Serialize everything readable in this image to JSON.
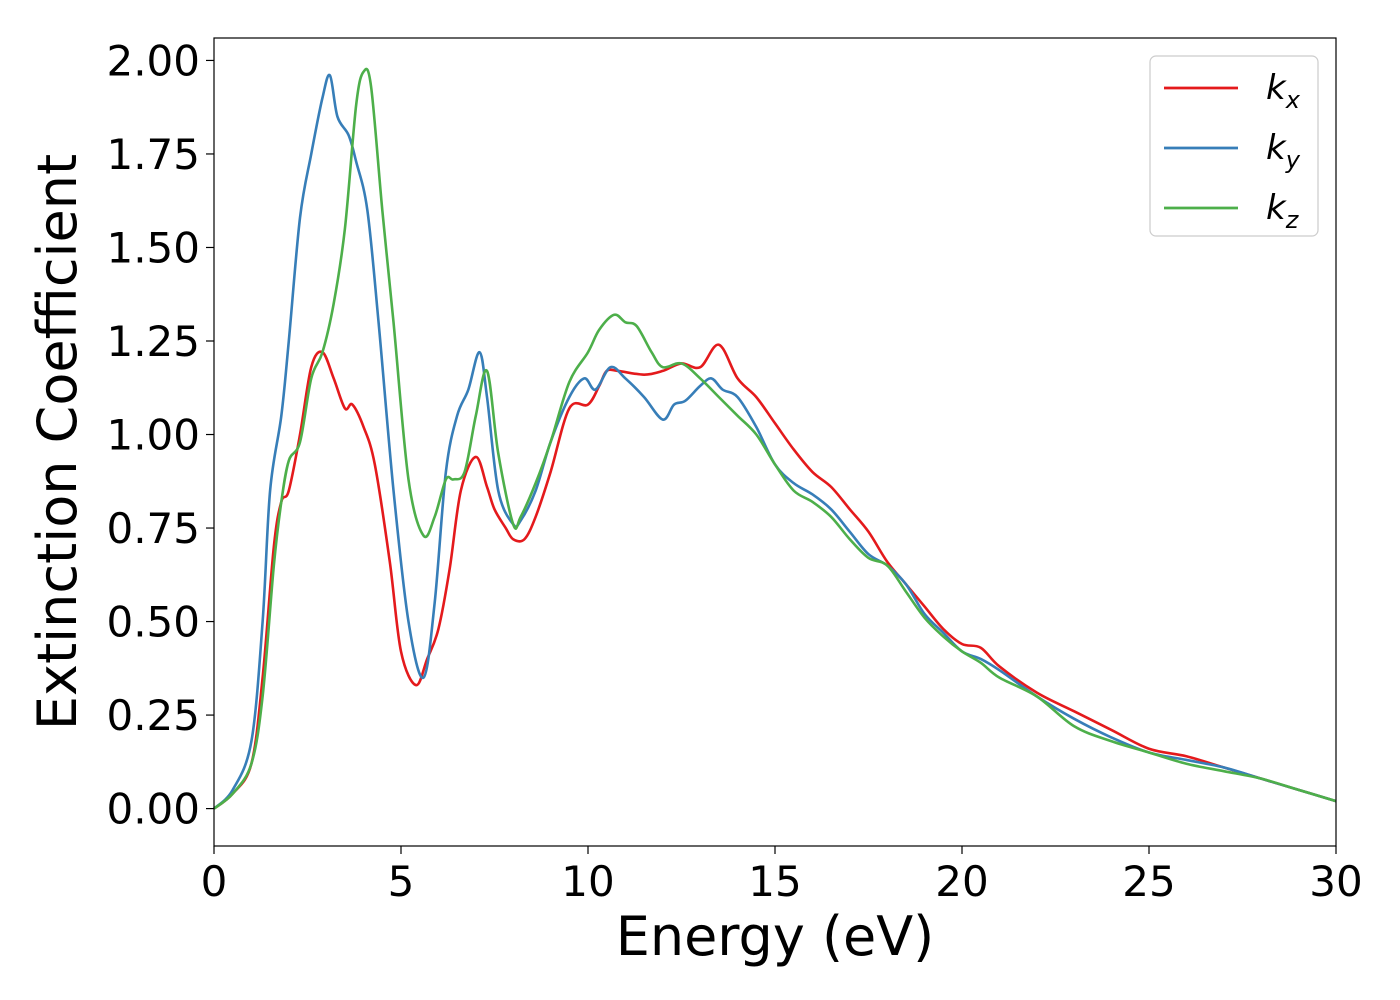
{
  "chart_data": {
    "type": "line",
    "xlabel": "Energy (eV)",
    "ylabel": "Extinction Coefficient",
    "xlim": [
      0,
      30
    ],
    "ylim": [
      -0.1,
      2.06
    ],
    "xticks": [
      "0",
      "5",
      "10",
      "15",
      "20",
      "25",
      "30"
    ],
    "yticks": [
      "0.00",
      "0.25",
      "0.50",
      "0.75",
      "1.00",
      "1.25",
      "1.50",
      "1.75",
      "2.00"
    ],
    "grid": false,
    "legend_position": "top-right",
    "series": [
      {
        "name": "k",
        "subscript": "x",
        "color": "#e41a1c",
        "x": [
          0,
          0.5,
          1.0,
          1.3,
          1.6,
          1.8,
          2.0,
          2.3,
          2.6,
          2.9,
          3.2,
          3.5,
          3.7,
          4.0,
          4.3,
          4.7,
          5.0,
          5.4,
          5.7,
          6.0,
          6.3,
          6.6,
          7.0,
          7.3,
          7.5,
          7.8,
          8.0,
          8.3,
          8.6,
          9.0,
          9.5,
          10.0,
          10.3,
          10.5,
          10.8,
          11.5,
          12.0,
          12.5,
          13.0,
          13.5,
          14.0,
          14.5,
          15.0,
          15.5,
          16.0,
          16.5,
          17.0,
          17.5,
          18.0,
          18.5,
          19.0,
          19.5,
          20.0,
          20.5,
          21.0,
          22.0,
          23.0,
          24.0,
          25.0,
          26.0,
          27.0,
          28.0,
          29.0,
          30.0
        ],
        "values": [
          0.0,
          0.04,
          0.12,
          0.35,
          0.7,
          0.82,
          0.85,
          1.0,
          1.18,
          1.22,
          1.15,
          1.07,
          1.08,
          1.02,
          0.92,
          0.66,
          0.42,
          0.33,
          0.4,
          0.48,
          0.64,
          0.85,
          0.94,
          0.86,
          0.8,
          0.75,
          0.72,
          0.72,
          0.78,
          0.9,
          1.07,
          1.08,
          1.13,
          1.17,
          1.17,
          1.16,
          1.17,
          1.19,
          1.18,
          1.24,
          1.15,
          1.1,
          1.03,
          0.96,
          0.9,
          0.86,
          0.8,
          0.74,
          0.66,
          0.6,
          0.54,
          0.48,
          0.44,
          0.43,
          0.38,
          0.31,
          0.26,
          0.21,
          0.16,
          0.14,
          0.11,
          0.08,
          0.05,
          0.02
        ]
      },
      {
        "name": "k",
        "subscript": "y",
        "color": "#377eb8",
        "x": [
          0,
          0.5,
          1.0,
          1.3,
          1.5,
          1.8,
          2.0,
          2.3,
          2.6,
          2.9,
          3.1,
          3.3,
          3.6,
          3.8,
          4.1,
          4.4,
          4.8,
          5.2,
          5.6,
          5.9,
          6.2,
          6.5,
          6.8,
          7.1,
          7.3,
          7.6,
          8.0,
          8.2,
          8.6,
          9.0,
          9.5,
          9.9,
          10.2,
          10.6,
          11.0,
          11.5,
          12.0,
          12.3,
          12.6,
          13.0,
          13.3,
          13.6,
          14.0,
          14.5,
          15.0,
          15.5,
          16.0,
          16.5,
          17.0,
          17.5,
          18.0,
          18.5,
          19.0,
          19.5,
          20.0,
          20.5,
          21.0,
          22.0,
          23.0,
          24.0,
          25.0,
          26.0,
          27.0,
          28.0,
          29.0,
          30.0
        ],
        "values": [
          0.0,
          0.05,
          0.18,
          0.5,
          0.85,
          1.05,
          1.25,
          1.58,
          1.75,
          1.9,
          1.96,
          1.85,
          1.8,
          1.73,
          1.6,
          1.3,
          0.85,
          0.5,
          0.35,
          0.55,
          0.9,
          1.05,
          1.12,
          1.22,
          1.1,
          0.85,
          0.76,
          0.77,
          0.85,
          0.98,
          1.1,
          1.15,
          1.12,
          1.18,
          1.15,
          1.1,
          1.04,
          1.08,
          1.09,
          1.13,
          1.15,
          1.12,
          1.1,
          1.02,
          0.92,
          0.87,
          0.84,
          0.8,
          0.74,
          0.68,
          0.65,
          0.6,
          0.52,
          0.47,
          0.42,
          0.4,
          0.37,
          0.3,
          0.24,
          0.19,
          0.15,
          0.13,
          0.11,
          0.08,
          0.05,
          0.02
        ]
      },
      {
        "name": "k",
        "subscript": "z",
        "color": "#4daf4a",
        "x": [
          0,
          0.5,
          1.0,
          1.3,
          1.6,
          1.8,
          2.0,
          2.3,
          2.6,
          2.9,
          3.2,
          3.5,
          3.8,
          4.0,
          4.2,
          4.5,
          4.8,
          5.2,
          5.6,
          5.9,
          6.2,
          6.4,
          6.7,
          7.0,
          7.3,
          7.6,
          8.0,
          8.2,
          8.6,
          9.0,
          9.5,
          10.0,
          10.3,
          10.7,
          11.0,
          11.3,
          11.7,
          12.0,
          12.5,
          13.0,
          13.5,
          14.0,
          14.5,
          15.0,
          15.5,
          16.0,
          16.5,
          17.0,
          17.5,
          18.0,
          18.5,
          19.0,
          19.5,
          20.0,
          20.5,
          21.0,
          22.0,
          23.0,
          24.0,
          25.0,
          26.0,
          27.0,
          28.0,
          29.0,
          30.0
        ],
        "values": [
          0.0,
          0.04,
          0.12,
          0.3,
          0.65,
          0.82,
          0.93,
          0.98,
          1.15,
          1.22,
          1.35,
          1.55,
          1.88,
          1.97,
          1.93,
          1.6,
          1.3,
          0.88,
          0.73,
          0.78,
          0.88,
          0.88,
          0.9,
          1.05,
          1.17,
          0.95,
          0.76,
          0.78,
          0.87,
          0.98,
          1.14,
          1.22,
          1.28,
          1.32,
          1.3,
          1.29,
          1.22,
          1.18,
          1.19,
          1.15,
          1.1,
          1.05,
          1.0,
          0.92,
          0.85,
          0.82,
          0.78,
          0.72,
          0.67,
          0.65,
          0.58,
          0.51,
          0.46,
          0.42,
          0.39,
          0.35,
          0.3,
          0.22,
          0.18,
          0.15,
          0.12,
          0.1,
          0.08,
          0.05,
          0.02
        ]
      }
    ]
  }
}
